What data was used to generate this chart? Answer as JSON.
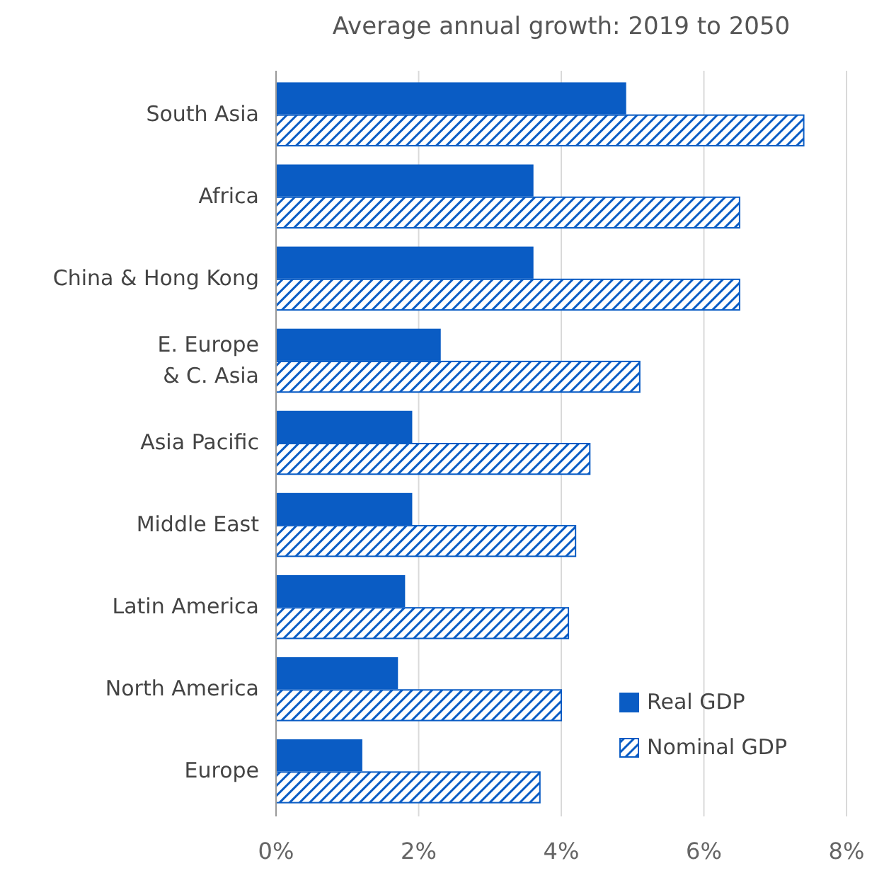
{
  "chart_data": {
    "type": "bar",
    "orientation": "horizontal",
    "title": "Average annual growth: 2019 to 2050",
    "categories": [
      "South Asia",
      "Africa",
      "China & Hong Kong",
      "E. Europe\n& C. Asia",
      "Asia Pacific",
      "Middle East",
      "Latin America",
      "North America",
      "Europe"
    ],
    "series": [
      {
        "name": "Real GDP",
        "color": "#0a5cc4",
        "values": [
          4.9,
          3.6,
          3.6,
          2.3,
          1.9,
          1.9,
          1.8,
          1.7,
          1.2
        ]
      },
      {
        "name": "Nominal GDP",
        "color": "#0a5cc4",
        "values": [
          7.4,
          6.5,
          6.5,
          5.1,
          4.4,
          4.2,
          4.1,
          4.0,
          3.7
        ]
      }
    ],
    "xlim": [
      0,
      8
    ],
    "xticks": [
      {
        "value": 0,
        "label": "0%"
      },
      {
        "value": 2,
        "label": "2%"
      },
      {
        "value": 4,
        "label": "4%"
      },
      {
        "value": 6,
        "label": "6%"
      },
      {
        "value": 8,
        "label": "8%"
      }
    ],
    "grid": "x",
    "legend": "bottom right"
  }
}
